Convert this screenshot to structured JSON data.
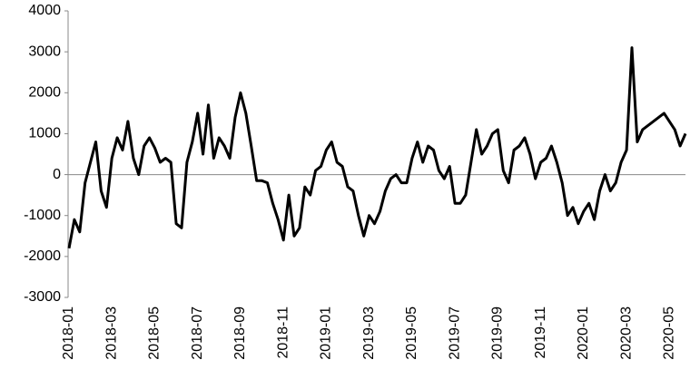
{
  "chart_data": {
    "type": "line",
    "categories": [
      "2018-01",
      null,
      null,
      null,
      null,
      null,
      null,
      null,
      "2018-03",
      null,
      null,
      null,
      null,
      null,
      null,
      null,
      "2018-05",
      null,
      null,
      null,
      null,
      null,
      null,
      null,
      "2018-07",
      null,
      null,
      null,
      null,
      null,
      null,
      null,
      "2018-09",
      null,
      null,
      null,
      null,
      null,
      null,
      null,
      "2018-11",
      null,
      null,
      null,
      null,
      null,
      null,
      null,
      "2019-01",
      null,
      null,
      null,
      null,
      null,
      null,
      null,
      "2019-03",
      null,
      null,
      null,
      null,
      null,
      null,
      null,
      "2019-05",
      null,
      null,
      null,
      null,
      null,
      null,
      null,
      "2019-07",
      null,
      null,
      null,
      null,
      null,
      null,
      null,
      "2019-09",
      null,
      null,
      null,
      null,
      null,
      null,
      null,
      "2019-11",
      null,
      null,
      null,
      null,
      null,
      null,
      null,
      "2020-01",
      null,
      null,
      null,
      null,
      null,
      null,
      null,
      "2020-03",
      null,
      null,
      null,
      null,
      null,
      null,
      null,
      "2020-05",
      null,
      null,
      null
    ],
    "series": [
      {
        "color": "#000000",
        "values": [
          -1800,
          -1100,
          -1400,
          -200,
          300,
          800,
          -400,
          -800,
          400,
          900,
          600,
          1300,
          400,
          0,
          700,
          900,
          650,
          300,
          400,
          300,
          -1200,
          -1300,
          300,
          800,
          1500,
          500,
          1700,
          400,
          900,
          700,
          400,
          1400,
          2000,
          1500,
          700,
          -150,
          -150,
          -200,
          -700,
          -1100,
          -1600,
          -500,
          -1500,
          -1300,
          -300,
          -500,
          100,
          200,
          600,
          800,
          300,
          200,
          -300,
          -400,
          -1000,
          -1500,
          -1000,
          -1200,
          -900,
          -400,
          -100,
          0,
          -200,
          -200,
          400,
          800,
          300,
          700,
          600,
          100,
          -100,
          200,
          -700,
          -700,
          -500,
          300,
          1100,
          500,
          700,
          1000,
          1100,
          100,
          -200,
          600,
          700,
          900,
          500,
          -100,
          300,
          400,
          700,
          300,
          -200,
          -1000,
          -800,
          -1200,
          -900,
          -700,
          -1100,
          -400,
          0,
          -400,
          -200,
          300,
          600,
          3100,
          800,
          1100,
          1200,
          1300,
          1400,
          1500,
          1300,
          1100,
          700,
          1000
        ]
      }
    ],
    "ylim": [
      -3000,
      4000
    ],
    "yticks": [
      -3000,
      -2000,
      -1000,
      0,
      1000,
      2000,
      3000,
      4000
    ]
  }
}
